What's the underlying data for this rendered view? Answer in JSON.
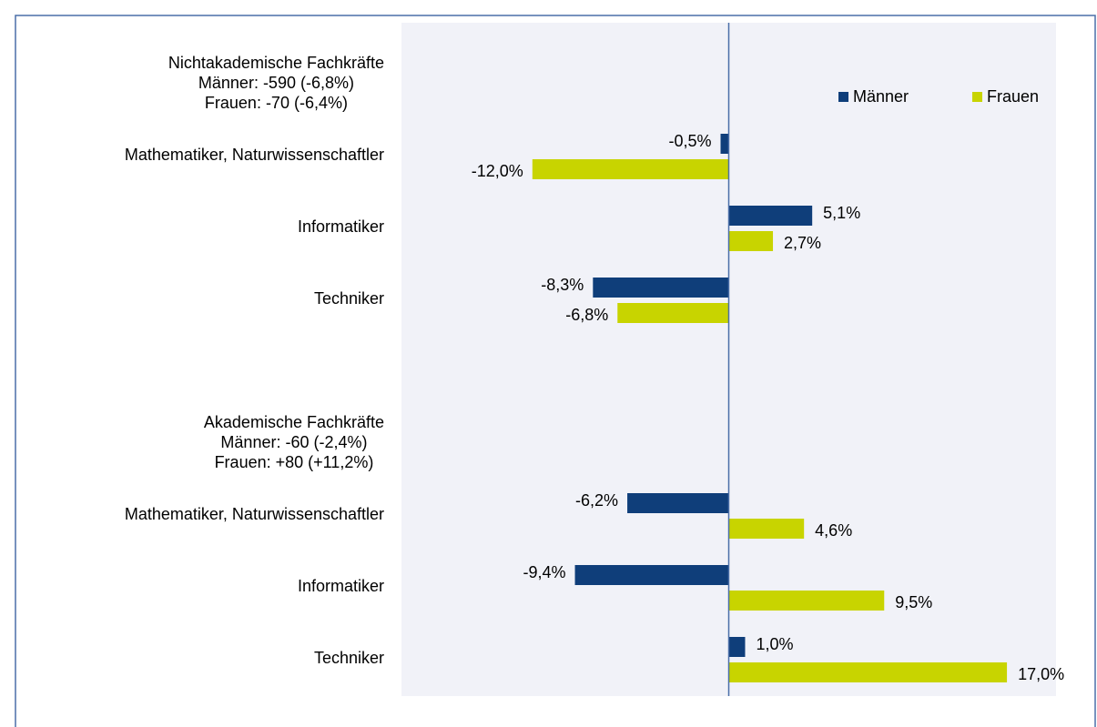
{
  "chart_data": {
    "type": "bar",
    "orientation": "horizontal",
    "categories": [
      "Nichtakademische Fachkräfte\nMänner: -590 (-6,8%)\nFrauen: -70 (-6,4%)",
      "Mathematiker, Naturwissenschaftler",
      "Informatiker",
      "Techniker",
      null,
      "Akademische Fachkräfte\nMänner: -60 (-2,4%)\nFrauen: +80 (+11,2%)",
      "Mathematiker, Naturwissenschaftler",
      "Informatiker",
      "Techniker"
    ],
    "series": [
      {
        "name": "Männer",
        "color": "#0f3e7a",
        "values": [
          null,
          -0.5,
          5.1,
          -8.3,
          null,
          null,
          -6.2,
          -9.4,
          1.0
        ],
        "value_labels": [
          null,
          "-0,5%",
          "5,1%",
          "-8,3%",
          null,
          null,
          "-6,2%",
          "-9,4%",
          "1,0%"
        ]
      },
      {
        "name": "Frauen",
        "color": "#c8d400",
        "values": [
          null,
          -12.0,
          2.7,
          -6.8,
          null,
          null,
          4.6,
          9.5,
          17.0
        ],
        "value_labels": [
          null,
          "-12,0%",
          "2,7%",
          "-6,8%",
          null,
          null,
          "4,6%",
          "9,5%",
          "17,0%"
        ]
      }
    ],
    "xlim": [
      -20,
      20
    ],
    "legend": "top-right"
  }
}
